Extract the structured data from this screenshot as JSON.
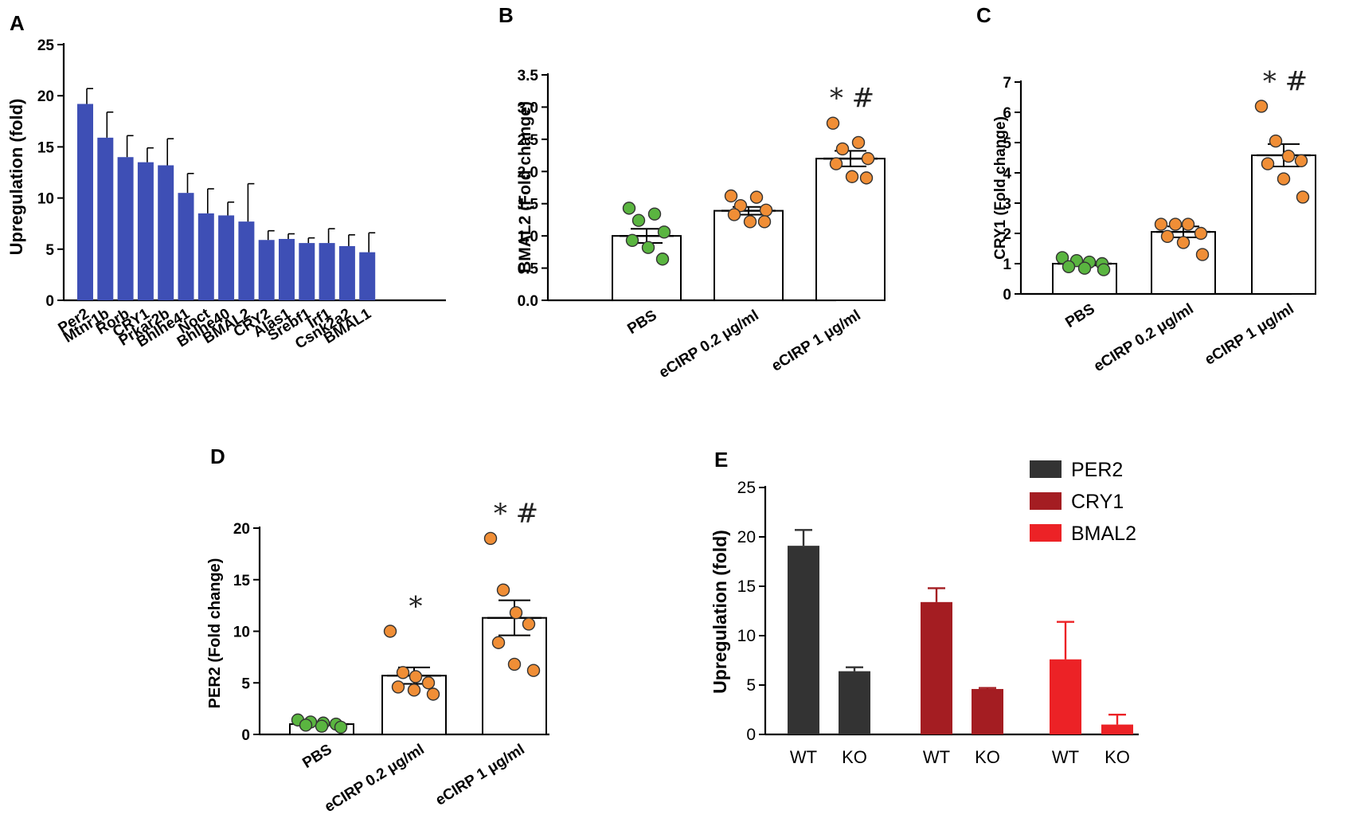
{
  "chart_data": [
    {
      "panel": "A",
      "type": "bar",
      "ylabel": "Upregulation (fold)",
      "ylim": [
        0,
        25
      ],
      "yticks": [
        "0",
        "5",
        "10",
        "15",
        "20",
        "25"
      ],
      "color": "#3e4fb5",
      "categories": [
        "Per2",
        "Mtnr1b",
        "Rorb",
        "CRY1",
        "Prkar2b",
        "Bhlhe41",
        "Noct",
        "Bhlhe40",
        "BMAL2",
        "CRY2",
        "Alas1",
        "Srebf1",
        "Irf1",
        "Csnk2a2",
        "BMAL1"
      ],
      "values": [
        19.2,
        15.9,
        14.0,
        13.5,
        13.2,
        10.5,
        8.5,
        8.3,
        7.7,
        5.9,
        6.0,
        5.6,
        5.6,
        5.3,
        4.7
      ],
      "errors": [
        1.5,
        2.5,
        2.1,
        1.4,
        2.6,
        1.9,
        2.4,
        1.3,
        3.7,
        0.9,
        0.5,
        0.5,
        1.4,
        1.1,
        1.9
      ]
    },
    {
      "panel": "B",
      "type": "scatter_bar",
      "ylabel": "BMAL2 (Fold change)",
      "ylim": [
        0,
        3.5
      ],
      "yticks": [
        "0.0",
        "0.5",
        "1.0",
        "1.5",
        "2.0",
        "2.5",
        "3.0",
        "3.5"
      ],
      "categories": [
        "PBS",
        "eCIRP 0.2 μg/ml",
        "eCIRP 1 μg/ml"
      ],
      "means": [
        1.0,
        1.39,
        2.2
      ],
      "sem": [
        0.11,
        0.06,
        0.12
      ],
      "points": [
        [
          1.43,
          1.34,
          1.24,
          1.06,
          0.93,
          0.82,
          0.64
        ],
        [
          1.62,
          1.6,
          1.47,
          1.4,
          1.33,
          1.22,
          1.22
        ],
        [
          2.75,
          2.45,
          2.35,
          2.2,
          2.12,
          1.92,
          1.9
        ]
      ],
      "point_colors": [
        "#5ab540",
        "#f08e36",
        "#f08e36"
      ],
      "annotations": [
        "",
        "",
        "* #"
      ]
    },
    {
      "panel": "C",
      "type": "scatter_bar",
      "ylabel": "CRY1 (Fold change)",
      "ylim": [
        0,
        7
      ],
      "yticks": [
        "0",
        "1",
        "2",
        "3",
        "4",
        "5",
        "6",
        "7"
      ],
      "categories": [
        "PBS",
        "eCIRP 0.2 μg/ml",
        "eCIRP 1 μg/ml"
      ],
      "means": [
        1.0,
        2.05,
        4.58
      ],
      "sem": [
        0.06,
        0.18,
        0.37
      ],
      "points": [
        [
          1.2,
          1.1,
          1.05,
          1.0,
          0.9,
          0.85,
          0.8
        ],
        [
          2.3,
          2.3,
          2.3,
          2.0,
          1.9,
          1.7,
          1.3
        ],
        [
          6.2,
          5.05,
          4.55,
          4.4,
          4.3,
          3.8,
          3.2
        ]
      ],
      "point_colors": [
        "#5ab540",
        "#f08e36",
        "#f08e36"
      ],
      "annotations": [
        "",
        "",
        "* #"
      ]
    },
    {
      "panel": "D",
      "type": "scatter_bar",
      "ylabel": "PER2 (Fold change)",
      "ylim": [
        0,
        20
      ],
      "yticks": [
        "0",
        "5",
        "10",
        "15",
        "20"
      ],
      "categories": [
        "PBS",
        "eCIRP 0.2 μg/ml",
        "eCIRP 1 μg/ml"
      ],
      "means": [
        1.0,
        5.7,
        11.3
      ],
      "sem": [
        0.1,
        0.8,
        1.7
      ],
      "points": [
        [
          1.4,
          1.2,
          1.1,
          1.0,
          0.9,
          0.8,
          0.7
        ],
        [
          10.0,
          6.0,
          5.6,
          5.0,
          4.6,
          4.3,
          3.9
        ],
        [
          19.0,
          14.0,
          11.8,
          10.7,
          8.9,
          6.8,
          6.2
        ]
      ],
      "point_colors": [
        "#5ab540",
        "#f08e36",
        "#f08e36"
      ],
      "annotations": [
        "",
        "*",
        "* #"
      ]
    },
    {
      "panel": "E",
      "type": "bar",
      "ylabel": "Upregulation (fold)",
      "ylim": [
        0,
        25
      ],
      "yticks": [
        "0",
        "5",
        "10",
        "15",
        "20",
        "25"
      ],
      "x_tick_labels": [
        "WT",
        "KO",
        "WT",
        "KO",
        "WT",
        "KO"
      ],
      "series": [
        {
          "name": "PER2",
          "color": "#333333",
          "values": [
            19.1,
            6.4
          ],
          "errors": [
            1.6,
            0.4
          ]
        },
        {
          "name": "CRY1",
          "color": "#a41d22",
          "values": [
            13.4,
            4.6
          ],
          "errors": [
            1.4,
            0.1
          ]
        },
        {
          "name": "BMAL2",
          "color": "#ec2226",
          "values": [
            7.6,
            1.0
          ],
          "errors": [
            3.8,
            1.0
          ]
        }
      ]
    }
  ]
}
